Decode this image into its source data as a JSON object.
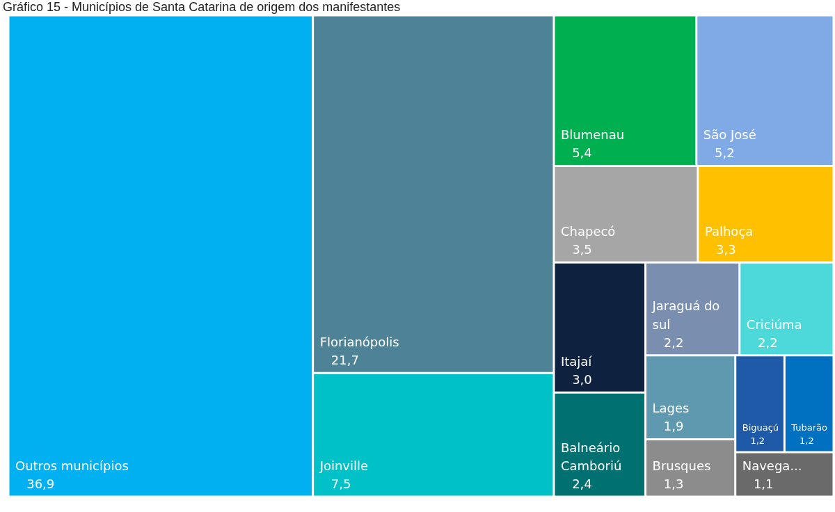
{
  "chart_data": {
    "type": "other",
    "title": "Gráfico 15 - Municípios de Santa Catarina de origem dos manifestantes",
    "categories": [
      "Outros municípios",
      "Florianópolis",
      "Joinville",
      "Blumenau",
      "São José",
      "Chapecó",
      "Palhoça",
      "Itajaí",
      "Balneário Camboriú",
      "Jaraguá do sul",
      "Criciúma",
      "Lages",
      "Brusques",
      "Biguaçú",
      "Tubarão",
      "Navega..."
    ],
    "values": [
      36.9,
      21.7,
      7.5,
      5.4,
      5.2,
      3.5,
      3.3,
      3.0,
      2.4,
      2.2,
      2.2,
      1.9,
      1.3,
      1.2,
      1.2,
      1.1
    ],
    "value_labels": [
      "36,9",
      "21,7",
      "7,5",
      "5,4",
      "5,2",
      "3,5",
      "3,3",
      "3,0",
      "2,4",
      "2,2",
      "2,2",
      "1,9",
      "1,3",
      "1,2",
      "1,2",
      "1,1"
    ],
    "colors": [
      "#00b0f0",
      "#4e8397",
      "#00c0c8",
      "#00b050",
      "#7faae6",
      "#a6a6a6",
      "#ffc000",
      "#0e2240",
      "#007070",
      "#7a8faf",
      "#4dd9d9",
      "#5e99b0",
      "#8c8c8c",
      "#1f5aa8",
      "#0070c0",
      "#6a6a6a"
    ],
    "legend": false
  }
}
